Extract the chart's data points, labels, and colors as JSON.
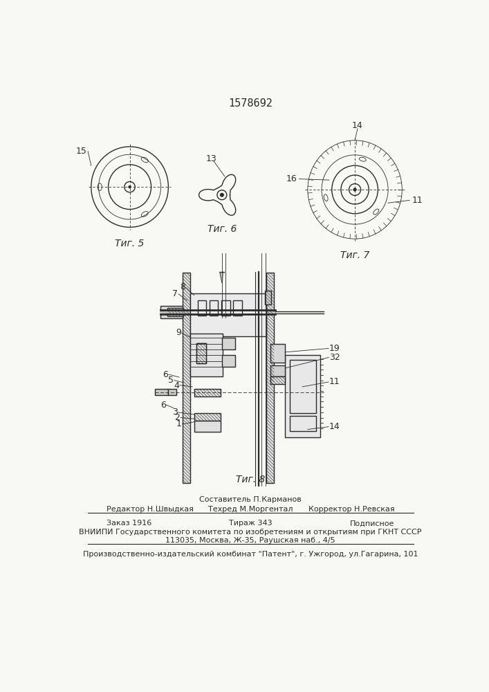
{
  "patent_number": "1578692",
  "background_color": "#f8f8f5",
  "line_color": "#2a2a2a",
  "fig5_label": "Τиг. 5",
  "fig6_label": "Τиг. 6",
  "fig7_label": "Τиг. 7",
  "fig8_label": "Τиг. 8",
  "editor_line": "Редактор Н.Швыдкая",
  "composer_line": "Составитель П.Карманов",
  "techred_line": "Техред М.Моргентал",
  "corrector_line": "Корректор Н.Ревская",
  "order_line": "Заказ 1916",
  "tirazh_line": "Тираж 343",
  "podpisnoe_line": "Подписное",
  "vniipи_line": "ВНИИПИ Государственного комитета по изобретениям и открытиям при ГКНТ СССР",
  "address_line": "113035, Москва, Ж-35, Раушская наб., 4/5",
  "publisher_line": "Производственно-издательский комбинат \"Патент\", г. Ужгород, ул.Гагарина, 101"
}
